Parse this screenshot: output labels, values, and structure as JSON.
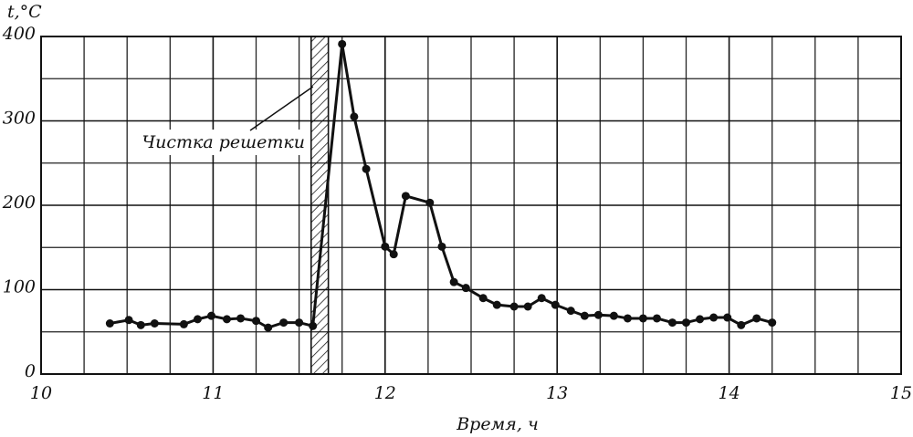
{
  "chart_data": {
    "type": "line",
    "ylabel": "t,°C",
    "xlabel": "Время, ч",
    "x": [
      10.4,
      10.51,
      10.58,
      10.66,
      10.83,
      10.91,
      10.99,
      11.08,
      11.16,
      11.25,
      11.32,
      11.41,
      11.5,
      11.58,
      11.75,
      11.82,
      11.89,
      12.0,
      12.05,
      12.12,
      12.26,
      12.33,
      12.4,
      12.47,
      12.57,
      12.65,
      12.75,
      12.83,
      12.91,
      12.99,
      13.08,
      13.16,
      13.24,
      13.33,
      13.41,
      13.5,
      13.58,
      13.67,
      13.75,
      13.83,
      13.91,
      13.99,
      14.07,
      14.16,
      14.25
    ],
    "series": [
      {
        "color": "#111111",
        "values": [
          60,
          64,
          58,
          60,
          59,
          65,
          69,
          65,
          66,
          63,
          55,
          61,
          61,
          57,
          391,
          305,
          243,
          151,
          142,
          211,
          203,
          151,
          109,
          102,
          90,
          82,
          80,
          80,
          90,
          82,
          75,
          69,
          70,
          69,
          66,
          66,
          66,
          61,
          61,
          65,
          67,
          67,
          58,
          66,
          61
        ]
      }
    ],
    "xlim": [
      10,
      15
    ],
    "xticks": [
      10,
      11,
      12,
      13,
      14,
      15
    ],
    "ylim": [
      0,
      400
    ],
    "yticks": [
      0,
      100,
      200,
      300,
      400
    ],
    "grid": true,
    "annotations": [
      {
        "label": "Чистка решетки",
        "x_start": 11.57,
        "x_end": 11.67
      }
    ]
  }
}
